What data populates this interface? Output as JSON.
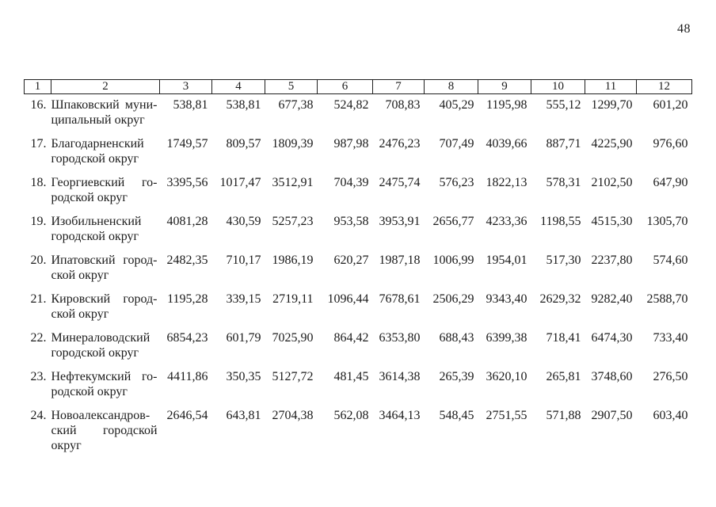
{
  "page": {
    "number": "48"
  },
  "table": {
    "header": [
      "1",
      "2",
      "3",
      "4",
      "5",
      "6",
      "7",
      "8",
      "9",
      "10",
      "11",
      "12"
    ],
    "rows": [
      {
        "num": "16.",
        "name_lines": [
          "Шпаковский муни-",
          "ципальный округ"
        ],
        "values": [
          "538,81",
          "538,81",
          "677,38",
          "524,82",
          "708,83",
          "405,29",
          "1195,98",
          "555,12",
          "1299,70",
          "601,20"
        ]
      },
      {
        "num": "17.",
        "name_lines": [
          "Благодарненский",
          "городской округ"
        ],
        "values": [
          "1749,57",
          "809,57",
          "1809,39",
          "987,98",
          "2476,23",
          "707,49",
          "4039,66",
          "887,71",
          "4225,90",
          "976,60"
        ]
      },
      {
        "num": "18.",
        "name_lines": [
          "Георгиевский го-",
          "родской округ"
        ],
        "values": [
          "3395,56",
          "1017,47",
          "3512,91",
          "704,39",
          "2475,74",
          "576,23",
          "1822,13",
          "578,31",
          "2102,50",
          "647,90"
        ]
      },
      {
        "num": "19.",
        "name_lines": [
          "Изобильненский",
          "городской округ"
        ],
        "values": [
          "4081,28",
          "430,59",
          "5257,23",
          "953,58",
          "3953,91",
          "2656,77",
          "4233,36",
          "1198,55",
          "4515,30",
          "1305,70"
        ]
      },
      {
        "num": "20.",
        "name_lines": [
          "Ипатовский город-",
          "ской округ"
        ],
        "values": [
          "2482,35",
          "710,17",
          "1986,19",
          "620,27",
          "1987,18",
          "1006,99",
          "1954,01",
          "517,30",
          "2237,80",
          "574,60"
        ]
      },
      {
        "num": "21.",
        "name_lines": [
          "Кировский город-",
          "ской округ"
        ],
        "values": [
          "1195,28",
          "339,15",
          "2719,11",
          "1096,44",
          "7678,61",
          "2506,29",
          "9343,40",
          "2629,32",
          "9282,40",
          "2588,70"
        ]
      },
      {
        "num": "22.",
        "name_lines": [
          "Минераловодский",
          "городской округ"
        ],
        "values": [
          "6854,23",
          "601,79",
          "7025,90",
          "864,42",
          "6353,80",
          "688,43",
          "6399,38",
          "718,41",
          "6474,30",
          "733,40"
        ]
      },
      {
        "num": "23.",
        "name_lines": [
          "Нефтекумский го-",
          "родской округ"
        ],
        "values": [
          "4411,86",
          "350,35",
          "5127,72",
          "481,45",
          "3614,38",
          "265,39",
          "3620,10",
          "265,81",
          "3748,60",
          "276,50"
        ]
      },
      {
        "num": "24.",
        "name_lines": [
          "Новоалександров-",
          "ский городской",
          "округ"
        ],
        "values": [
          "2646,54",
          "643,81",
          "2704,38",
          "562,08",
          "3464,13",
          "548,45",
          "2751,55",
          "571,88",
          "2907,50",
          "603,40"
        ]
      }
    ]
  }
}
